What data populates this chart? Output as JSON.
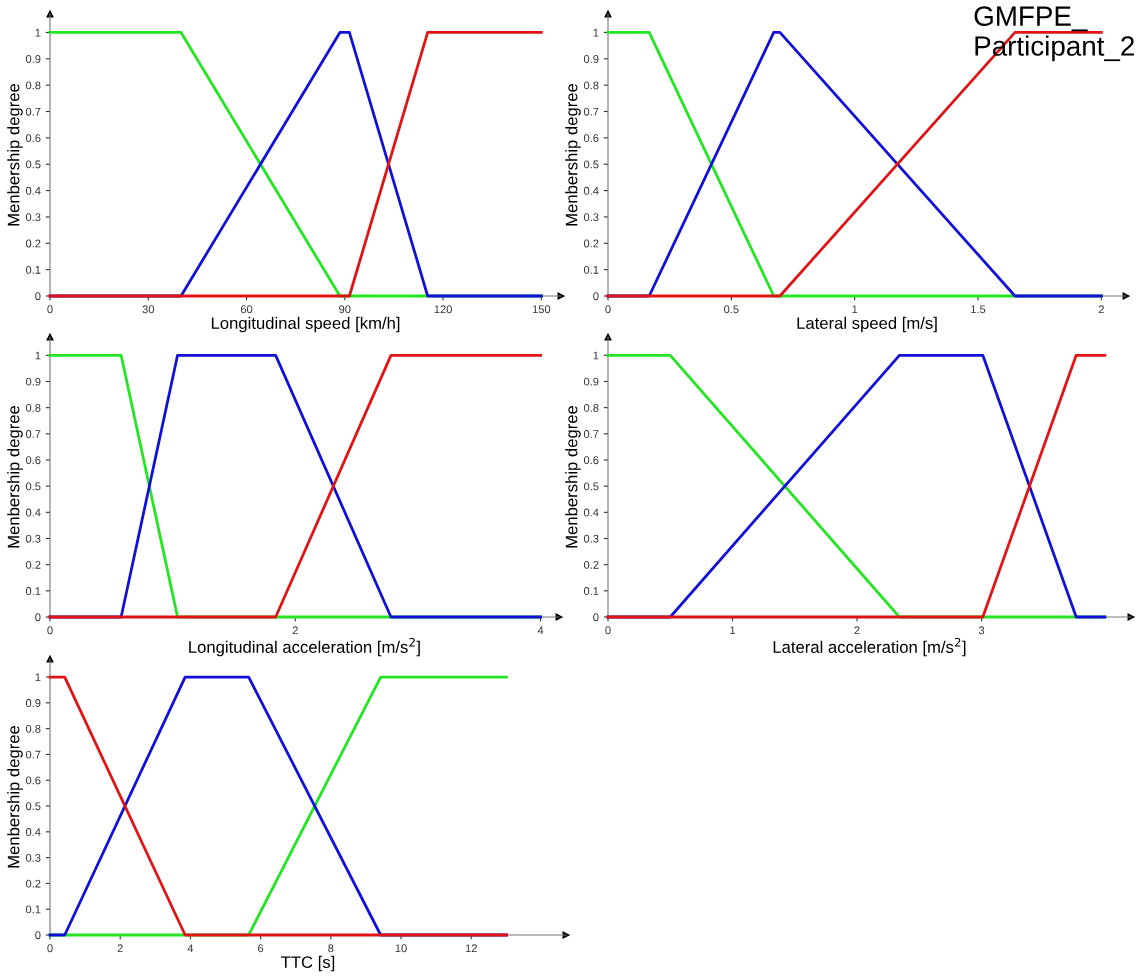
{
  "chart_data": [
    {
      "type": "line",
      "xlabel": "Longitudinal speed [km/h]",
      "ylabel": "Menbership degree",
      "xlim": [
        0,
        156
      ],
      "xticks": [
        0,
        30,
        60,
        90,
        120,
        150
      ],
      "ylim": [
        0,
        1.07
      ],
      "yticks": [
        0,
        0.1,
        0.2,
        0.3,
        0.4,
        0.5,
        0.6,
        0.7,
        0.8,
        0.9,
        1
      ],
      "grid": false,
      "marker": "none",
      "line_style": "solid",
      "series": [
        {
          "color": "#22e622",
          "x": [
            0,
            40,
            88.5,
            150
          ],
          "values": [
            1,
            1,
            0,
            0
          ]
        },
        {
          "color": "#1010d8",
          "x": [
            0,
            40,
            88.5,
            91.4,
            115.3,
            150
          ],
          "values": [
            0,
            0,
            1,
            1,
            0,
            0
          ]
        },
        {
          "color": "#e01414",
          "x": [
            0,
            91.4,
            115.3,
            150
          ],
          "values": [
            0,
            0,
            1,
            1
          ]
        }
      ]
    },
    {
      "type": "line",
      "xlabel": "Lateral speed [m/s]",
      "ylabel": "Menbership degree",
      "xlim": [
        0,
        2.1
      ],
      "xticks": [
        0,
        0.5,
        1,
        1.5,
        2
      ],
      "ylim": [
        0,
        1.07
      ],
      "yticks": [
        0,
        0.1,
        0.2,
        0.3,
        0.4,
        0.5,
        0.6,
        0.7,
        0.8,
        0.9,
        1
      ],
      "grid": false,
      "marker": "none",
      "line_style": "solid",
      "annotations": [
        "GMFPE_\nParticipant_2"
      ],
      "series": [
        {
          "color": "#22e622",
          "x": [
            0,
            0.167,
            0.672,
            2
          ],
          "values": [
            1,
            1,
            0,
            0
          ]
        },
        {
          "color": "#1010d8",
          "x": [
            0,
            0.167,
            0.672,
            0.697,
            1.65,
            2
          ],
          "values": [
            0,
            0,
            1,
            1,
            0,
            0
          ]
        },
        {
          "color": "#e01414",
          "x": [
            0,
            0.697,
            1.65,
            2
          ],
          "values": [
            0,
            0,
            1,
            1
          ]
        }
      ]
    },
    {
      "type": "line",
      "xlabel": "Longitudinal acceleration [m/s$^{2}$]",
      "ylabel": "Menbership degree",
      "xlim": [
        0,
        4.15
      ],
      "xticks": [
        0,
        2,
        4
      ],
      "ylim": [
        0,
        1.07
      ],
      "yticks": [
        0,
        0.1,
        0.2,
        0.3,
        0.4,
        0.5,
        0.6,
        0.7,
        0.8,
        0.9,
        1
      ],
      "grid": false,
      "marker": "none",
      "line_style": "solid",
      "series": [
        {
          "color": "#22e622",
          "x": [
            0,
            0.58,
            1.04,
            4
          ],
          "values": [
            1,
            1,
            0,
            0
          ]
        },
        {
          "color": "#1010d8",
          "x": [
            0,
            0.58,
            1.04,
            1.84,
            2.78,
            4
          ],
          "values": [
            0,
            0,
            1,
            1,
            0,
            0
          ]
        },
        {
          "color": "#e01414",
          "x": [
            0,
            1.84,
            2.78,
            4
          ],
          "values": [
            0,
            0,
            1,
            1
          ]
        }
      ]
    },
    {
      "type": "line",
      "xlabel": "Lateral acceleration [m/s$^{2}$]",
      "ylabel": "Menbership degree",
      "xlim": [
        0,
        4.2
      ],
      "xticks": [
        0,
        1,
        2,
        3
      ],
      "ylim": [
        0,
        1.07
      ],
      "yticks": [
        0,
        0.1,
        0.2,
        0.3,
        0.4,
        0.5,
        0.6,
        0.7,
        0.8,
        0.9,
        1
      ],
      "grid": false,
      "marker": "none",
      "line_style": "solid",
      "series": [
        {
          "color": "#22e622",
          "x": [
            0,
            0.5,
            2.34,
            3.99
          ],
          "values": [
            1,
            1,
            0,
            0
          ]
        },
        {
          "color": "#1010d8",
          "x": [
            0,
            0.5,
            2.34,
            3.01,
            3.76,
            3.99
          ],
          "values": [
            0,
            0,
            1,
            1,
            0,
            0
          ]
        },
        {
          "color": "#e01414",
          "x": [
            0,
            3.01,
            3.76,
            3.99
          ],
          "values": [
            0,
            0,
            1,
            1
          ]
        }
      ]
    },
    {
      "type": "line",
      "xlabel": "TTC [s]",
      "ylabel": "Menbership degree",
      "xlim": [
        0,
        14.7
      ],
      "xticks": [
        0,
        2,
        4,
        6,
        8,
        10,
        12
      ],
      "ylim": [
        0,
        1.07
      ],
      "yticks": [
        0,
        0.1,
        0.2,
        0.3,
        0.4,
        0.5,
        0.6,
        0.7,
        0.8,
        0.9,
        1
      ],
      "grid": false,
      "marker": "none",
      "line_style": "solid",
      "series": [
        {
          "color": "#22e622",
          "x": [
            0,
            5.66,
            9.42,
            13
          ],
          "values": [
            0,
            0,
            1,
            1
          ]
        },
        {
          "color": "#1010d8",
          "x": [
            0,
            0.42,
            3.85,
            5.66,
            9.42,
            13
          ],
          "values": [
            0,
            0,
            1,
            1,
            0,
            0
          ]
        },
        {
          "color": "#e01414",
          "x": [
            0,
            0.42,
            3.85,
            13
          ],
          "values": [
            1,
            1,
            0,
            0
          ]
        }
      ]
    }
  ]
}
